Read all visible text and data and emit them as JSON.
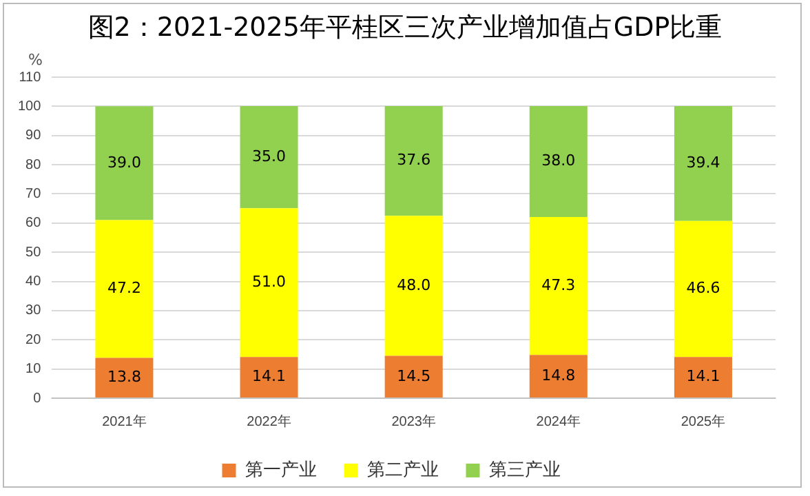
{
  "chart_data": {
    "type": "bar",
    "title": "图2：2021-2025年平桂区三次产业增加值占GDP比重",
    "ylabel": "%",
    "categories": [
      "2021年",
      "2022年",
      "2023年",
      "2024年",
      "2025年"
    ],
    "stacked": true,
    "ylim": [
      0,
      110
    ],
    "yticks": [
      0,
      10,
      20,
      30,
      40,
      50,
      60,
      70,
      80,
      90,
      100,
      110
    ],
    "grid": "y",
    "legend": "bottom",
    "series": [
      {
        "name": "第一产业",
        "color": "#ed7d31",
        "values": [
          13.8,
          14.1,
          14.5,
          14.8,
          14.1
        ],
        "value_labels": [
          "13.8",
          "14.1",
          "14.5",
          "14.8",
          "14.1"
        ]
      },
      {
        "name": "第二产业",
        "color": "#ffff00",
        "values": [
          47.2,
          51.0,
          48.0,
          47.3,
          46.6
        ],
        "value_labels": [
          "47.2",
          "51.0",
          "48.0",
          "47.3",
          "46.6"
        ]
      },
      {
        "name": "第三产业",
        "color": "#92d050",
        "values": [
          39.0,
          35.0,
          37.6,
          38.0,
          39.4
        ],
        "value_labels": [
          "39.0",
          "35.0",
          "37.6",
          "38.0",
          "39.4"
        ]
      }
    ]
  }
}
